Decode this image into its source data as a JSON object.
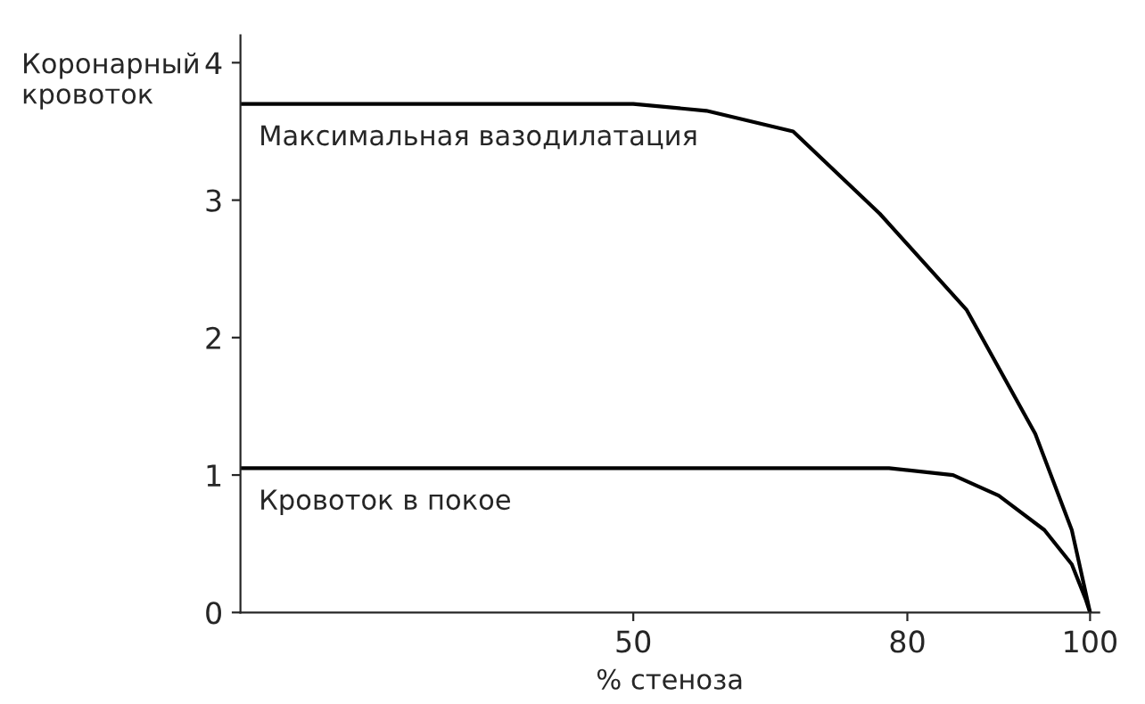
{
  "chart_data": {
    "type": "line",
    "xlabel": "% стеноза",
    "ylabel": "Коронарный\nкровоток",
    "xlim": [
      7,
      101
    ],
    "ylim": [
      0,
      4.2
    ],
    "xticks": [
      50,
      80,
      100
    ],
    "yticks": [
      0,
      1,
      2,
      3,
      4
    ],
    "grid": false,
    "legend": false,
    "marker": "none",
    "line_style": "solid",
    "series": [
      {
        "name": "Максимальная вазодилатация",
        "color": "#000000",
        "x": [
          7,
          50,
          58,
          67.5,
          77,
          86.5,
          94,
          98,
          100
        ],
        "values": [
          3.7,
          3.7,
          3.65,
          3.5,
          2.9,
          2.2,
          1.3,
          0.6,
          0
        ]
      },
      {
        "name": "Кровоток в покое",
        "color": "#000000",
        "x": [
          7,
          78,
          85,
          90,
          95,
          98,
          99.5,
          100
        ],
        "values": [
          1.05,
          1.05,
          1.0,
          0.85,
          0.6,
          0.35,
          0.1,
          0
        ]
      }
    ]
  }
}
